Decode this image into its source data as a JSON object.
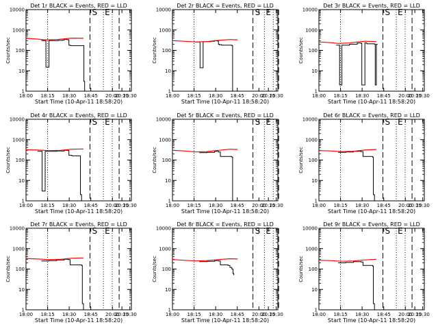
{
  "colors": {
    "events": "#000000",
    "lld": "#ff0000",
    "axes": "#000000",
    "background": "#ffffff"
  },
  "chart_data": [
    {
      "type": "line",
      "title": "Det 1r BLACK = Events, RED = LLD",
      "xlabel": "Start Time (10-Apr-11 18:58:20)",
      "ylabel": "Counts/sec",
      "x_ticks": [
        "18:00",
        "18:15",
        "18:30",
        "18:45",
        "20:00",
        "20:15",
        "20:30"
      ],
      "y_ticks": [
        "1",
        "10",
        "100",
        "1000",
        "10000"
      ],
      "y_scale": "log",
      "ylim": [
        1,
        10000
      ],
      "annotations": [
        "S",
        "E"
      ],
      "series": [
        {
          "color": "#000000",
          "x": [
            18.4,
            18.5,
            18.52,
            18.6,
            18.85,
            18.95,
            19.0,
            19.05,
            19.1,
            19.12,
            19.15,
            19.17,
            19.18,
            19.5,
            19.51,
            19.53
          ],
          "y": [
            300,
            300,
            15,
            300,
            310,
            320,
            350,
            340,
            330,
            180,
            175,
            170,
            170,
            170,
            3,
            1
          ]
        },
        {
          "color": "#ff0000",
          "x": [
            18.0,
            18.3,
            18.5,
            18.8,
            19.0,
            19.2,
            19.5
          ],
          "y": [
            390,
            360,
            330,
            340,
            370,
            400,
            390
          ]
        }
      ],
      "vlines": [
        {
          "x": 19.67,
          "style": "dashed"
        },
        {
          "x": 20.02,
          "style": "dotted"
        },
        {
          "x": 20.25,
          "style": "dotted"
        },
        {
          "x": 20.43,
          "style": "dashed"
        }
      ]
    },
    {
      "type": "line",
      "title": "Det 2r BLACK = Events, RED = LLD",
      "xlabel": "Start Time (10-Apr-11 18:58:20)",
      "ylabel": "Counts/sec",
      "x_ticks": [
        "18:00",
        "18:15",
        "18:30",
        "18:45",
        "20:00",
        "20:15",
        "20:30"
      ],
      "y_ticks": [
        "1",
        "10",
        "100",
        "1000",
        "10000"
      ],
      "y_scale": "log",
      "ylim": [
        1,
        10000
      ],
      "annotations": [
        "S",
        "E"
      ],
      "series": [
        {
          "color": "#000000",
          "x": [
            18.6,
            18.7,
            18.72,
            18.8,
            19.0,
            19.1,
            19.15,
            19.2,
            19.22,
            19.28,
            19.55,
            19.57,
            19.6,
            19.62
          ],
          "y": [
            260,
            260,
            14,
            270,
            280,
            300,
            290,
            200,
            190,
            180,
            170,
            1,
            1,
            1
          ]
        },
        {
          "color": "#ff0000",
          "x": [
            18.0,
            18.3,
            18.6,
            18.9,
            19.2,
            19.5,
            19.7
          ],
          "y": [
            300,
            280,
            260,
            270,
            310,
            340,
            330
          ]
        }
      ],
      "vlines": [
        {
          "x": 20.1,
          "style": "dashed"
        },
        {
          "x": 20.4,
          "style": "dotted"
        },
        {
          "x": 20.63,
          "style": "dotted"
        },
        {
          "x": 20.77,
          "style": "dashed"
        }
      ]
    },
    {
      "type": "line",
      "title": "Det 3r BLACK = Events, RED = LLD",
      "xlabel": "Start Time (10-Apr-11 18:58:20)",
      "ylabel": "Counts/sec",
      "x_ticks": [
        "18:00",
        "18:15",
        "18:30",
        "18:45",
        "20:00",
        "20:15",
        "20:30"
      ],
      "y_ticks": [
        "1",
        "10",
        "100",
        "1000",
        "10000"
      ],
      "y_scale": "log",
      "ylim": [
        1,
        10000
      ],
      "annotations": [
        "S",
        "E"
      ],
      "series": [
        {
          "color": "#000000",
          "x": [
            18.45,
            18.52,
            18.54,
            18.6,
            18.8,
            19.0,
            19.1,
            19.12,
            19.2,
            19.25,
            19.45,
            19.47,
            19.5,
            19.52
          ],
          "y": [
            180,
            180,
            2,
            180,
            200,
            230,
            220,
            2,
            230,
            210,
            200,
            2,
            200,
            190
          ]
        },
        {
          "color": "#ff0000",
          "x": [
            18.0,
            18.3,
            18.5,
            18.8,
            19.0,
            19.2,
            19.5
          ],
          "y": [
            260,
            240,
            220,
            230,
            260,
            280,
            270
          ]
        }
      ],
      "vlines": [
        {
          "x": 19.67,
          "style": "dashed"
        },
        {
          "x": 20.02,
          "style": "dotted"
        },
        {
          "x": 20.25,
          "style": "dotted"
        },
        {
          "x": 20.43,
          "style": "dashed"
        }
      ]
    },
    {
      "type": "line",
      "title": "Det 4r BLACK = Events, RED = LLD",
      "xlabel": "Start Time (10-Apr-11 18:58:20)",
      "ylabel": "Counts/sec",
      "x_ticks": [
        "18:00",
        "18:15",
        "18:30",
        "18:45",
        "20:00",
        "20:15",
        "20:30"
      ],
      "y_ticks": [
        "1",
        "10",
        "100",
        "1000",
        "10000"
      ],
      "y_scale": "log",
      "ylim": [
        1,
        10000
      ],
      "annotations": [
        "S",
        "E"
      ],
      "series": [
        {
          "color": "#000000",
          "x": [
            18.3,
            18.4,
            18.42,
            18.5,
            18.8,
            19.0,
            19.1,
            19.12,
            19.2,
            19.4,
            19.42,
            19.45,
            19.47
          ],
          "y": [
            270,
            270,
            3,
            270,
            280,
            300,
            290,
            170,
            160,
            160,
            2,
            1,
            1
          ]
        },
        {
          "color": "#ff0000",
          "x": [
            18.0,
            18.3,
            18.6,
            18.9,
            19.2,
            19.5
          ],
          "y": [
            320,
            310,
            290,
            300,
            340,
            350
          ]
        }
      ],
      "vlines": [
        {
          "x": 19.67,
          "style": "dashed"
        },
        {
          "x": 20.02,
          "style": "dotted"
        },
        {
          "x": 20.25,
          "style": "dotted"
        },
        {
          "x": 20.43,
          "style": "dashed"
        }
      ]
    },
    {
      "type": "line",
      "title": "Det 5r BLACK = Events, RED = LLD",
      "xlabel": "Start Time (10-Apr-11 18:58:20)",
      "ylabel": "Counts/sec",
      "x_ticks": [
        "18:00",
        "18:15",
        "18:30",
        "18:45",
        "20:00",
        "20:15",
        "20:30"
      ],
      "y_ticks": [
        "1",
        "10",
        "100",
        "1000",
        "10000"
      ],
      "y_scale": "log",
      "ylim": [
        1,
        10000
      ],
      "annotations": [
        "S",
        "E"
      ],
      "series": [
        {
          "color": "#000000",
          "x": [
            18.7,
            18.9,
            19.1,
            19.2,
            19.25,
            19.55,
            19.57,
            19.6
          ],
          "y": [
            230,
            240,
            270,
            250,
            150,
            140,
            1,
            1
          ]
        },
        {
          "color": "#ff0000",
          "x": [
            18.0,
            18.3,
            18.6,
            18.9,
            19.2,
            19.5,
            19.7
          ],
          "y": [
            300,
            280,
            250,
            260,
            300,
            340,
            330
          ]
        }
      ],
      "vlines": [
        {
          "x": 20.1,
          "style": "dashed"
        },
        {
          "x": 20.4,
          "style": "dotted"
        },
        {
          "x": 20.63,
          "style": "dotted"
        },
        {
          "x": 20.77,
          "style": "dashed"
        }
      ]
    },
    {
      "type": "line",
      "title": "Det 6r BLACK = Events, RED = LLD",
      "xlabel": "Start Time (10-Apr-11 18:58:20)",
      "ylabel": "Counts/sec",
      "x_ticks": [
        "18:00",
        "18:15",
        "18:30",
        "18:45",
        "20:00",
        "20:15",
        "20:30"
      ],
      "y_ticks": [
        "1",
        "10",
        "100",
        "1000",
        "10000"
      ],
      "y_scale": "log",
      "ylim": [
        1,
        10000
      ],
      "annotations": [
        "S",
        "E"
      ],
      "series": [
        {
          "color": "#000000",
          "x": [
            18.5,
            18.7,
            18.9,
            19.1,
            19.15,
            19.4,
            19.42,
            19.45
          ],
          "y": [
            240,
            250,
            270,
            260,
            150,
            140,
            2,
            1
          ]
        },
        {
          "color": "#ff0000",
          "x": [
            18.0,
            18.3,
            18.6,
            18.9,
            19.2,
            19.5
          ],
          "y": [
            290,
            280,
            260,
            270,
            310,
            330
          ]
        }
      ],
      "vlines": [
        {
          "x": 19.67,
          "style": "dashed"
        },
        {
          "x": 20.02,
          "style": "dotted"
        },
        {
          "x": 20.25,
          "style": "dotted"
        },
        {
          "x": 20.43,
          "style": "dashed"
        }
      ]
    },
    {
      "type": "line",
      "title": "Det 7r BLACK = Events, RED = LLD",
      "xlabel": "Start Time (10-Apr-11 18:58:20)",
      "ylabel": "Counts/sec",
      "x_ticks": [
        "18:00",
        "18:15",
        "18:30",
        "18:45",
        "20:00",
        "20:15",
        "20:30"
      ],
      "y_ticks": [
        "1",
        "10",
        "100",
        "1000",
        "10000"
      ],
      "y_scale": "log",
      "ylim": [
        1,
        10000
      ],
      "annotations": [
        "S",
        "E"
      ],
      "series": [
        {
          "color": "#000000",
          "x": [
            18.4,
            18.6,
            18.8,
            19.0,
            19.1,
            19.15,
            19.45,
            19.47,
            19.5
          ],
          "y": [
            250,
            260,
            280,
            300,
            290,
            160,
            150,
            2,
            1
          ]
        },
        {
          "color": "#ff0000",
          "x": [
            18.0,
            18.3,
            18.6,
            18.9,
            19.2,
            19.5
          ],
          "y": [
            330,
            310,
            290,
            300,
            340,
            350
          ]
        }
      ],
      "vlines": [
        {
          "x": 19.67,
          "style": "dashed"
        },
        {
          "x": 20.02,
          "style": "dotted"
        },
        {
          "x": 20.25,
          "style": "dotted"
        },
        {
          "x": 20.43,
          "style": "dashed"
        }
      ]
    },
    {
      "type": "line",
      "title": "Det 8r BLACK = Events, RED = LLD",
      "xlabel": "Start Time (10-Apr-11 18:58:20)",
      "ylabel": "Counts/sec",
      "x_ticks": [
        "18:00",
        "18:15",
        "18:30",
        "18:45",
        "20:00",
        "20:15",
        "20:30"
      ],
      "y_ticks": [
        "1",
        "10",
        "100",
        "1000",
        "10000"
      ],
      "y_scale": "log",
      "ylim": [
        1,
        10000
      ],
      "annotations": [
        "S",
        "E"
      ],
      "series": [
        {
          "color": "#000000",
          "x": [
            18.7,
            18.9,
            19.1,
            19.2,
            19.25,
            19.45,
            19.5,
            19.55,
            19.58,
            19.6
          ],
          "y": [
            230,
            240,
            260,
            250,
            160,
            150,
            120,
            100,
            60,
            50
          ]
        },
        {
          "color": "#ff0000",
          "x": [
            18.0,
            18.3,
            18.6,
            18.9,
            19.2,
            19.5,
            19.7
          ],
          "y": [
            290,
            270,
            250,
            260,
            290,
            320,
            310
          ]
        }
      ],
      "vlines": [
        {
          "x": 20.1,
          "style": "dashed"
        },
        {
          "x": 20.4,
          "style": "dotted"
        },
        {
          "x": 20.63,
          "style": "dotted"
        },
        {
          "x": 20.77,
          "style": "dashed"
        }
      ]
    },
    {
      "type": "line",
      "title": "Det 9r BLACK = Events, RED = LLD",
      "xlabel": "Start Time (10-Apr-11 18:58:20)",
      "ylabel": "Counts/sec",
      "x_ticks": [
        "18:00",
        "18:15",
        "18:30",
        "18:45",
        "20:00",
        "20:15",
        "20:30"
      ],
      "y_ticks": [
        "1",
        "10",
        "100",
        "1000",
        "10000"
      ],
      "y_scale": "log",
      "ylim": [
        1,
        10000
      ],
      "annotations": [
        "S",
        "E"
      ],
      "series": [
        {
          "color": "#000000",
          "x": [
            18.5,
            18.7,
            18.9,
            19.1,
            19.15,
            19.4,
            19.42,
            19.45
          ],
          "y": [
            200,
            210,
            230,
            220,
            150,
            140,
            2,
            1
          ]
        },
        {
          "color": "#ff0000",
          "x": [
            18.0,
            18.3,
            18.6,
            18.9,
            19.2,
            19.5
          ],
          "y": [
            270,
            260,
            240,
            250,
            280,
            300
          ]
        }
      ],
      "vlines": [
        {
          "x": 19.67,
          "style": "dashed"
        },
        {
          "x": 20.02,
          "style": "dotted"
        },
        {
          "x": 20.25,
          "style": "dotted"
        },
        {
          "x": 20.43,
          "style": "dashed"
        }
      ]
    }
  ]
}
